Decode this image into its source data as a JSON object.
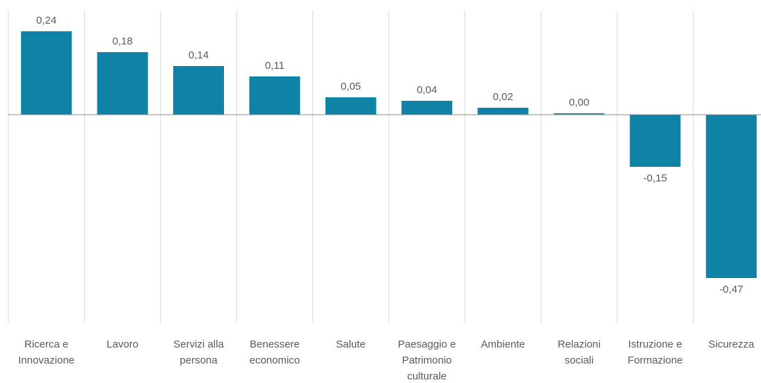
{
  "chart_data": {
    "type": "bar",
    "categories": [
      "Ricerca e Innovazione",
      "Lavoro",
      "Servizi alla persona",
      "Benessere economico",
      "Salute",
      "Paesaggio e Patrimonio culturale",
      "Ambiente",
      "Relazioni sociali",
      "Istruzione e Formazione",
      "Sicurezza"
    ],
    "values": [
      0.24,
      0.18,
      0.14,
      0.11,
      0.05,
      0.04,
      0.02,
      0.004,
      -0.15,
      -0.47
    ],
    "value_labels": [
      "0,24",
      "0,18",
      "0,14",
      "0,11",
      "0,05",
      "0,04",
      "0,02",
      "0,00",
      "-0,15",
      "-0,47"
    ],
    "color": "#0f83a6",
    "ylim": [
      -0.6,
      0.3
    ]
  }
}
